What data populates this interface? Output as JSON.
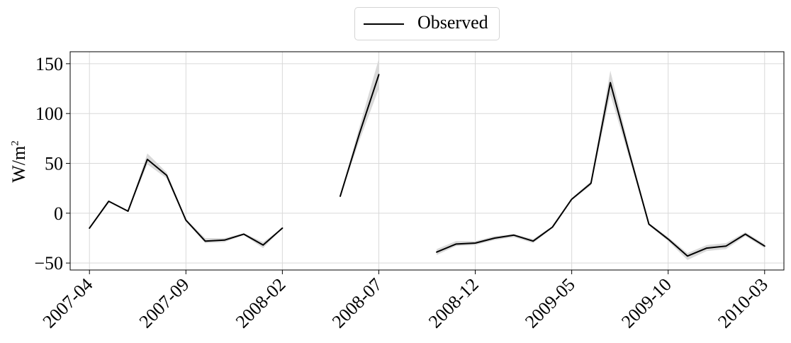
{
  "legend": {
    "label": "Observed"
  },
  "axes": {
    "ylabel_base": "W/m",
    "ylabel_sup": "2"
  },
  "chart_data": {
    "type": "line",
    "title": "",
    "xlabel": "",
    "ylabel": "W/m²",
    "xtick_labels": [
      "2007-04",
      "2007-09",
      "2008-02",
      "2008-07",
      "2008-12",
      "2009-05",
      "2009-10",
      "2010-03"
    ],
    "ytick_labels": [
      "−50",
      "0",
      "50",
      "100",
      "150"
    ],
    "yticks": [
      -50,
      0,
      50,
      100,
      150
    ],
    "ylim": [
      -57,
      162
    ],
    "xlim": [
      "2007-03",
      "2010-04"
    ],
    "grid": true,
    "legend_position": "top-center",
    "colors": {
      "line": "#000000",
      "band": "#d9d9d9",
      "grid": "#d9d9d9"
    },
    "series": [
      {
        "name": "Observed",
        "x": [
          "2007-04",
          "2007-05",
          "2007-06",
          "2007-07",
          "2007-08",
          "2007-09",
          "2007-10",
          "2007-11",
          "2007-12",
          "2008-01",
          "2008-02",
          "2008-03",
          "2008-04",
          "2008-05",
          "2008-06",
          "2008-07",
          "2008-08",
          "2008-09",
          "2008-10",
          "2008-11",
          "2008-12",
          "2009-01",
          "2009-02",
          "2009-03",
          "2009-04",
          "2009-05",
          "2009-06",
          "2009-07",
          "2009-08",
          "2009-09",
          "2009-10",
          "2009-11",
          "2009-12",
          "2010-01",
          "2010-02",
          "2010-03"
        ],
        "y": [
          -15,
          12,
          2,
          54,
          38,
          -7,
          -28,
          -27,
          -21,
          -32,
          -15,
          null,
          null,
          17,
          80,
          139,
          null,
          null,
          -39,
          -31,
          -30,
          -25,
          -22,
          -28,
          -14,
          14,
          30,
          131,
          59,
          -11,
          -26,
          -43,
          -35,
          -33,
          -21,
          -33
        ],
        "lower": [
          -15,
          12,
          2,
          49,
          35,
          -8,
          -30,
          -29,
          -22,
          -35,
          -15,
          null,
          null,
          17,
          73,
          125,
          null,
          null,
          -42,
          -33,
          -32,
          -27,
          -24,
          -30,
          -15,
          13,
          28,
          119,
          54,
          -12,
          -28,
          -47,
          -38,
          -36,
          -23,
          -35
        ],
        "upper": [
          -15,
          12,
          2,
          60,
          41,
          -6,
          -25,
          -25,
          -20,
          -29,
          -15,
          null,
          null,
          17,
          87,
          155,
          null,
          null,
          -36,
          -28,
          -28,
          -23,
          -21,
          -26,
          -13,
          15,
          32,
          143,
          64,
          -10,
          -24,
          -40,
          -32,
          -30,
          -19,
          -31
        ]
      }
    ]
  }
}
